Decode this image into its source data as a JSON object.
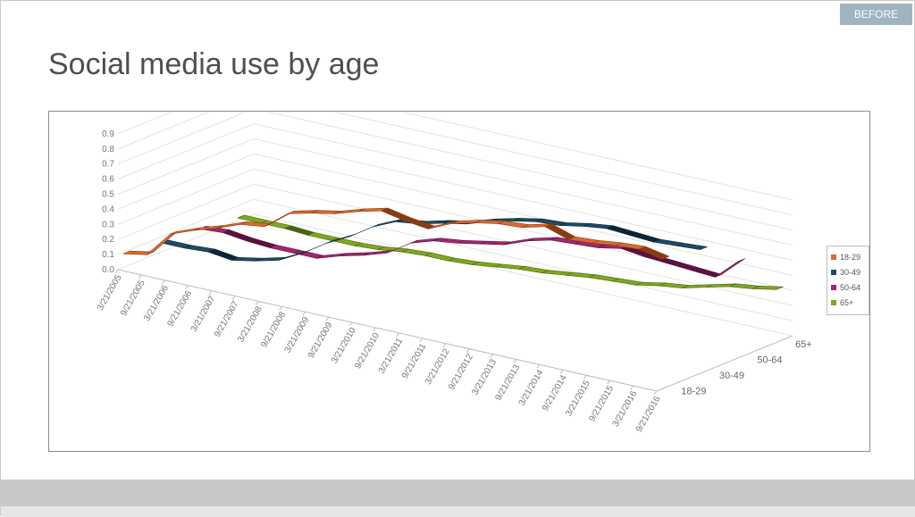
{
  "badge": "BEFORE",
  "title": "Social media use by age",
  "chart_data": {
    "type": "line",
    "title": "",
    "xlabel": "",
    "ylabel": "",
    "ylim": [
      0,
      0.9
    ],
    "y_ticks": [
      "0.0",
      "0.1",
      "0.2",
      "0.3",
      "0.4",
      "0.5",
      "0.6",
      "0.7",
      "0.8",
      "0.9"
    ],
    "x_ticks": [
      "3/21/2005",
      "9/21/2005",
      "3/21/2006",
      "9/21/2006",
      "3/21/2007",
      "9/21/2007",
      "3/21/2008",
      "9/21/2008",
      "3/21/2009",
      "9/21/2009",
      "3/21/2010",
      "9/21/2010",
      "3/21/2011",
      "9/21/2011",
      "3/21/2012",
      "9/21/2012",
      "3/21/2013",
      "9/21/2013",
      "3/21/2014",
      "9/21/2014",
      "3/21/2015",
      "9/21/2015",
      "3/21/2016",
      "9/21/2016"
    ],
    "depth_labels": [
      "18-29",
      "30-49",
      "50-64",
      "65+"
    ],
    "legend_position": "right",
    "series": [
      {
        "name": "18-29",
        "color": "#d9692e",
        "edge": "#8a3b12",
        "values": [
          0.09,
          0.12,
          0.29,
          0.35,
          0.4,
          0.46,
          0.48,
          0.6,
          0.64,
          0.67,
          0.72,
          0.76,
          0.73,
          0.71,
          0.78,
          0.82,
          0.85,
          0.86,
          0.9,
          0.85,
          0.86,
          0.88,
          0.89,
          0.86
        ]
      },
      {
        "name": "30-49",
        "color": "#1b4c63",
        "edge": "#0c2633",
        "values": [
          0.06,
          0.06,
          0.07,
          0.05,
          0.08,
          0.12,
          0.2,
          0.3,
          0.38,
          0.48,
          0.55,
          0.57,
          0.61,
          0.64,
          0.69,
          0.73,
          0.76,
          0.77,
          0.8,
          0.82,
          0.81,
          0.8,
          0.81,
          0.82
        ]
      },
      {
        "name": "50-64",
        "color": "#a0286f",
        "edge": "#5a1240",
        "values": [
          0.05,
          0.06,
          0.04,
          0.03,
          0.03,
          0.03,
          0.08,
          0.12,
          0.17,
          0.27,
          0.32,
          0.34,
          0.37,
          0.4,
          0.46,
          0.5,
          0.51,
          0.52,
          0.55,
          0.53,
          0.52,
          0.51,
          0.5,
          0.64
        ]
      },
      {
        "name": "65+",
        "color": "#7fa81d",
        "edge": "#4a6410",
        "values": [
          0.02,
          0.02,
          0.02,
          0.01,
          0.01,
          0.01,
          0.02,
          0.04,
          0.05,
          0.05,
          0.06,
          0.08,
          0.1,
          0.11,
          0.13,
          0.15,
          0.16,
          0.17,
          0.2,
          0.22,
          0.26,
          0.3,
          0.32,
          0.35
        ]
      }
    ]
  }
}
